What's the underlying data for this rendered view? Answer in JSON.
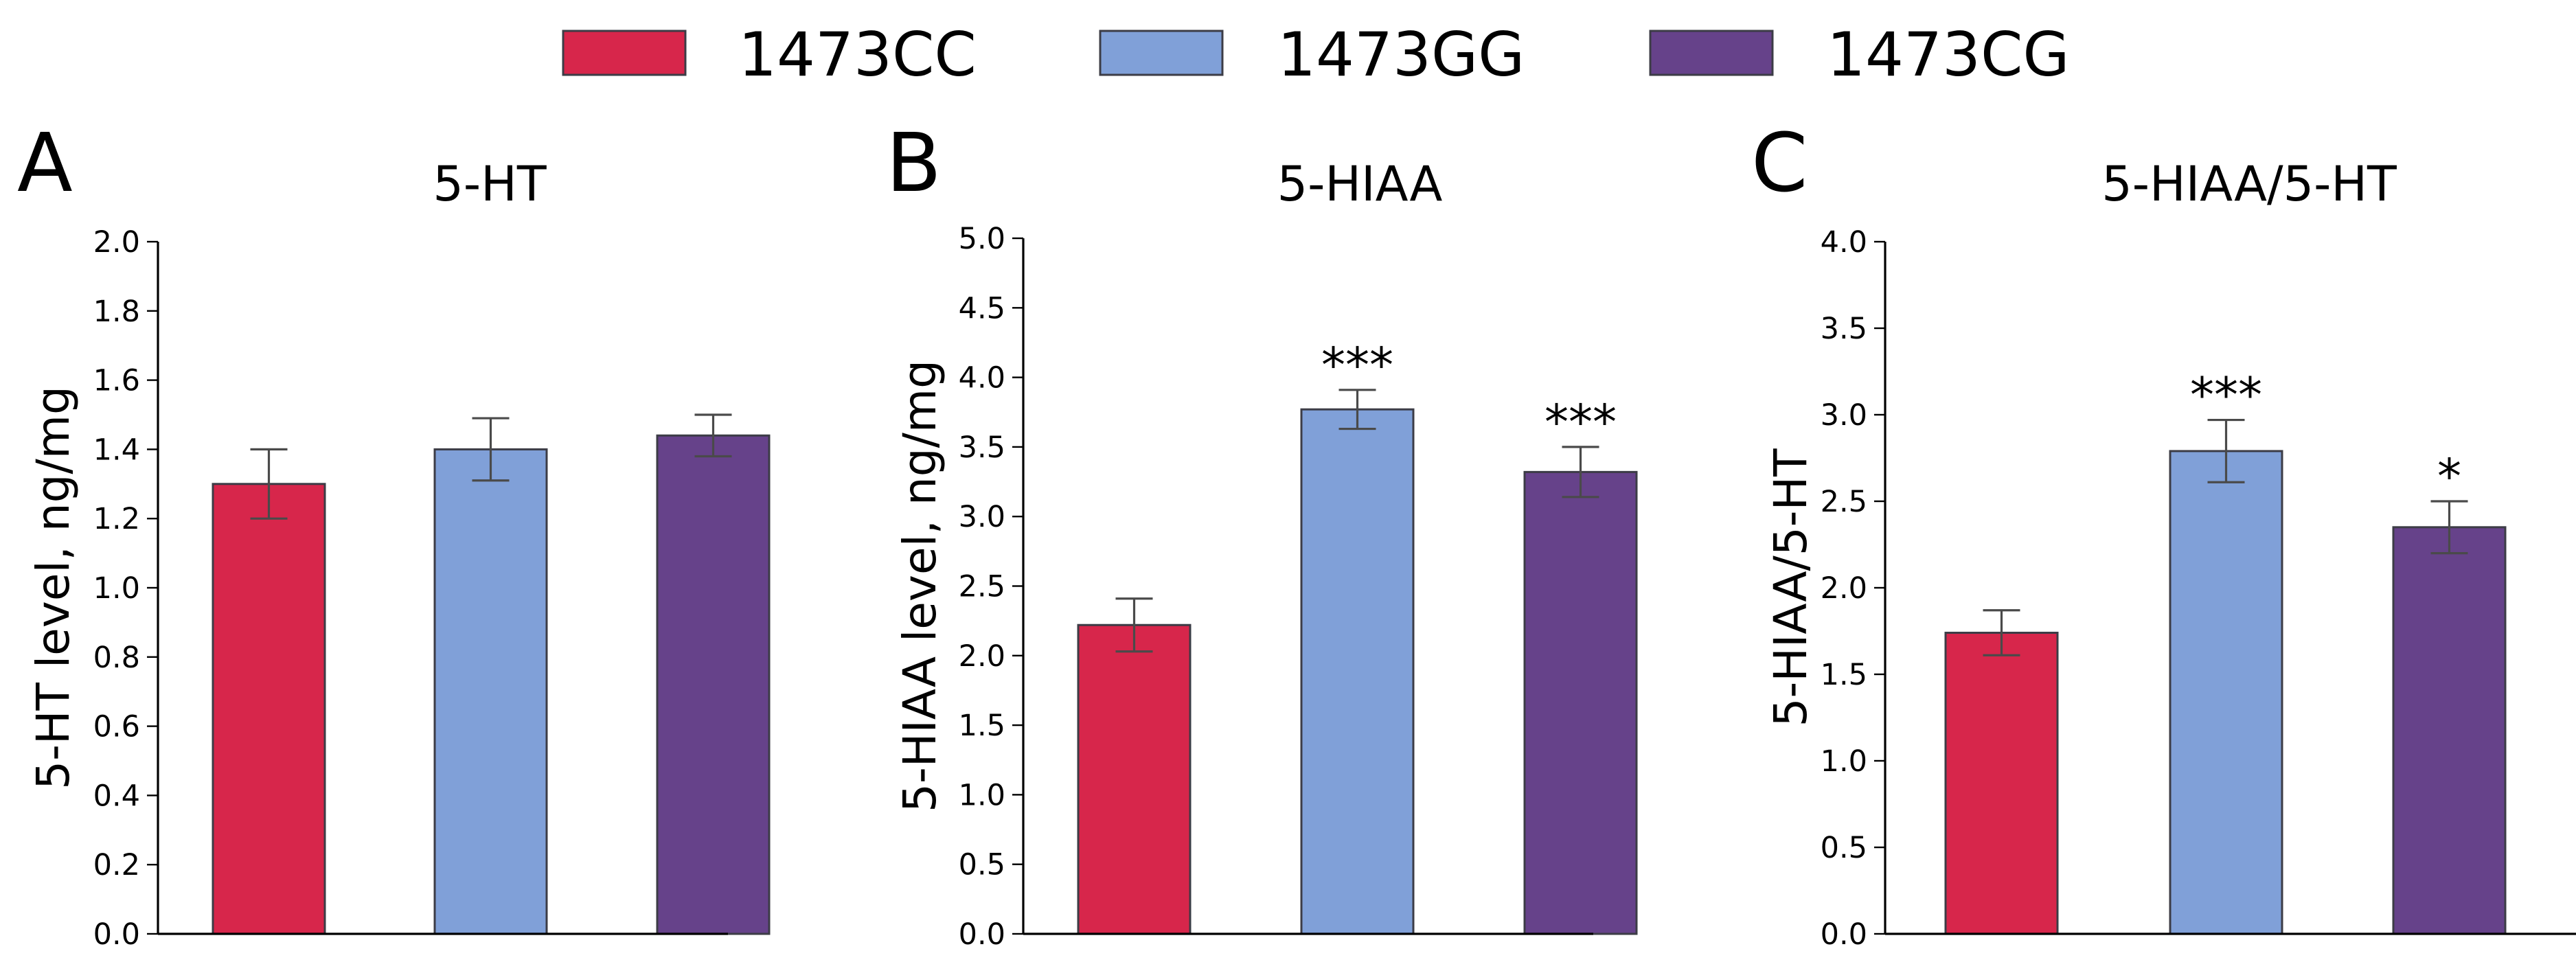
{
  "legend": {
    "items": [
      {
        "label": "1473CC",
        "color": "#d7264b"
      },
      {
        "label": "1473GG",
        "color": "#80a0d8"
      },
      {
        "label": "1473CG",
        "color": "#66428a"
      }
    ]
  },
  "chart_data": [
    {
      "type": "bar",
      "panel_letter": "A",
      "title": "5-HT",
      "xlabel": "",
      "ylabel": "5-HT level, ng/mg",
      "categories": [
        "1473CC",
        "1473GG",
        "1473CG"
      ],
      "values": [
        1.3,
        1.4,
        1.44
      ],
      "errors": [
        0.1,
        0.09,
        0.06
      ],
      "significance": [
        "",
        "",
        ""
      ],
      "colors": [
        "#d7264b",
        "#80a0d8",
        "#66428a"
      ],
      "ylim": [
        0,
        2.0
      ],
      "yticks": [
        0.0,
        0.2,
        0.4,
        0.6,
        0.8,
        1.0,
        1.2,
        1.4,
        1.6,
        1.8,
        2.0
      ],
      "ytick_labels": [
        "0.0",
        "0.2",
        "0.4",
        "0.6",
        "0.8",
        "1.0",
        "1.2",
        "1.4",
        "1.6",
        "1.8",
        "2.0"
      ]
    },
    {
      "type": "bar",
      "panel_letter": "B",
      "title": "5-HIAA",
      "xlabel": "",
      "ylabel": "5-HIAA level, ng/mg",
      "categories": [
        "1473CC",
        "1473GG",
        "1473CG"
      ],
      "values": [
        2.22,
        3.77,
        3.32
      ],
      "errors": [
        0.19,
        0.14,
        0.18
      ],
      "significance": [
        "",
        "***",
        "***"
      ],
      "colors": [
        "#d7264b",
        "#80a0d8",
        "#66428a"
      ],
      "ylim": [
        0,
        5.0
      ],
      "yticks": [
        0.0,
        0.5,
        1.0,
        1.5,
        2.0,
        2.5,
        3.0,
        3.5,
        4.0,
        4.5,
        5.0
      ],
      "ytick_labels": [
        "0.0",
        "0.5",
        "1.0",
        "1.5",
        "2.0",
        "2.5",
        "3.0",
        "3.5",
        "4.0",
        "4.5",
        "5.0"
      ]
    },
    {
      "type": "bar",
      "panel_letter": "C",
      "title": "5-HIAA/5-HT",
      "xlabel": "",
      "ylabel": "5-HIAA/5-HT",
      "categories": [
        "1473CC",
        "1473GG",
        "1473CG"
      ],
      "values": [
        1.74,
        2.79,
        2.35
      ],
      "errors": [
        0.13,
        0.18,
        0.15
      ],
      "significance": [
        "",
        "***",
        "*"
      ],
      "colors": [
        "#d7264b",
        "#80a0d8",
        "#66428a"
      ],
      "ylim": [
        0,
        4.0
      ],
      "yticks": [
        0.0,
        0.5,
        1.0,
        1.5,
        2.0,
        2.5,
        3.0,
        3.5,
        4.0
      ],
      "ytick_labels": [
        "0.0",
        "0.5",
        "1.0",
        "1.5",
        "2.0",
        "2.5",
        "3.0",
        "3.5",
        "4.0"
      ]
    }
  ]
}
